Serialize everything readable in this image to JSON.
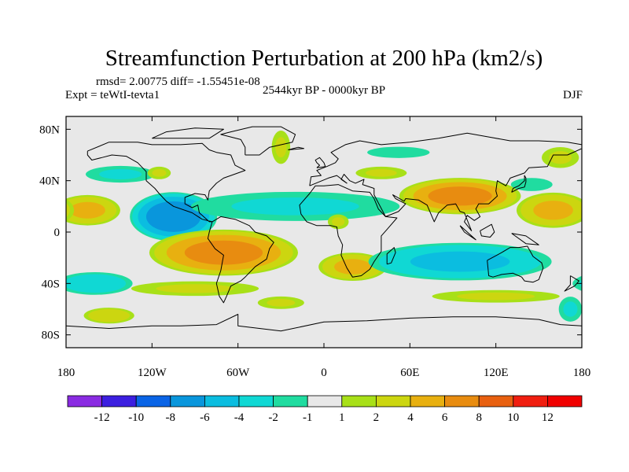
{
  "chart_data": {
    "type": "heatmap",
    "title": "Streamfunction Perturbation at 200 hPa (km2/s)",
    "stats": "rmsd= 2.00775 diff= -1.55451e-08",
    "left_label": "Expt = teWtI-tevta1",
    "center_label": "2544kyr BP - 0000kyr BP",
    "right_label": "DJF",
    "xlabel": "",
    "ylabel": "",
    "xlim": [
      -180,
      180
    ],
    "ylim": [
      -90,
      90
    ],
    "x_ticks": [
      {
        "value": -180,
        "label": "180"
      },
      {
        "value": -120,
        "label": "120W"
      },
      {
        "value": -60,
        "label": "60W"
      },
      {
        "value": 0,
        "label": "0"
      },
      {
        "value": 60,
        "label": "60E"
      },
      {
        "value": 120,
        "label": "120E"
      },
      {
        "value": 180,
        "label": "180"
      }
    ],
    "y_ticks": [
      {
        "value": 80,
        "label": "80N"
      },
      {
        "value": 40,
        "label": "40N"
      },
      {
        "value": 0,
        "label": "0"
      },
      {
        "value": -40,
        "label": "40S"
      },
      {
        "value": -80,
        "label": "80S"
      }
    ],
    "levels": [
      -12,
      -10,
      -8,
      -6,
      -4,
      -2,
      -1,
      1,
      2,
      4,
      6,
      8,
      10,
      12
    ],
    "level_labels": [
      "-12",
      "-10",
      "-8",
      "-6",
      "-4",
      "-2",
      "-1",
      "1",
      "2",
      "4",
      "6",
      "8",
      "10",
      "12"
    ],
    "colors": [
      "#8a2be2",
      "#3c1fe0",
      "#0a64e6",
      "#0996dc",
      "#0bbde0",
      "#10d8d4",
      "#20dca0",
      "#e8e8e8",
      "#a8e018",
      "#ccd610",
      "#e8b010",
      "#e88c10",
      "#e86010",
      "#f01e10",
      "#f00000"
    ],
    "map_fill_color": "#e8e8e8",
    "features": [
      {
        "lon": -105,
        "lat": 12,
        "value": -7,
        "rx": 32,
        "ry": 20,
        "label": "central America low"
      },
      {
        "lon": -165,
        "lat": 17,
        "value": 4,
        "rx": 25,
        "ry": 13,
        "label": "Pacific high north"
      },
      {
        "lon": -70,
        "lat": -16,
        "value": 6,
        "rx": 55,
        "ry": 19,
        "label": "South America high"
      },
      {
        "lon": -160,
        "lat": -40,
        "value": -3,
        "rx": 30,
        "ry": 10,
        "label": "South Pacific low"
      },
      {
        "lon": -90,
        "lat": -44,
        "value": 2,
        "rx": 55,
        "ry": 7,
        "label": "southern band"
      },
      {
        "lon": -142,
        "lat": 45,
        "value": -2,
        "rx": 30,
        "ry": 8,
        "label": "north Pacific low"
      },
      {
        "lon": -30,
        "lat": 66,
        "value": 2,
        "rx": 8,
        "ry": 16,
        "label": "Greenland high"
      },
      {
        "lon": -115,
        "lat": 46,
        "value": 2,
        "rx": 10,
        "ry": 6,
        "label": "western US high"
      },
      {
        "lon": -20,
        "lat": 20,
        "value": -2,
        "rx": 90,
        "ry": 14,
        "label": "Atlantic low band"
      },
      {
        "lon": 10,
        "lat": 8,
        "value": 2,
        "rx": 9,
        "ry": 7,
        "label": "Africa high"
      },
      {
        "lon": 20,
        "lat": -27,
        "value": 4,
        "rx": 26,
        "ry": 12,
        "label": "south Atlantic high"
      },
      {
        "lon": 95,
        "lat": 28,
        "value": 6,
        "rx": 45,
        "ry": 15,
        "label": "Asia high"
      },
      {
        "lon": 160,
        "lat": 17,
        "value": 4,
        "rx": 28,
        "ry": 15,
        "label": "west Pacific high"
      },
      {
        "lon": 95,
        "lat": -23,
        "value": -4,
        "rx": 70,
        "ry": 16,
        "label": "Indian Ocean low"
      },
      {
        "lon": 52,
        "lat": 62,
        "value": -1.5,
        "rx": 30,
        "ry": 6,
        "label": "Siberia low"
      },
      {
        "lon": 165,
        "lat": 58,
        "value": 2,
        "rx": 16,
        "ry": 10,
        "label": "Bering high"
      },
      {
        "lon": 145,
        "lat": 37,
        "value": -1.5,
        "rx": 20,
        "ry": 7,
        "label": "Japan low"
      },
      {
        "lon": 40,
        "lat": 46,
        "value": 2,
        "rx": 22,
        "ry": 6,
        "label": "Europe high"
      },
      {
        "lon": -150,
        "lat": -65,
        "value": 3,
        "rx": 20,
        "ry": 7,
        "label": "Ross Sea high"
      },
      {
        "lon": 172,
        "lat": -60,
        "value": -2,
        "rx": 10,
        "ry": 12,
        "label": "SE Pacific low"
      },
      {
        "lon": -30,
        "lat": -55,
        "value": 2,
        "rx": 20,
        "ry": 6,
        "label": "Weddell high"
      },
      {
        "lon": 120,
        "lat": -50,
        "value": 2,
        "rx": 55,
        "ry": 6,
        "label": "Southern Ocean band"
      }
    ],
    "coastlines": [
      [
        [
          -165,
          63
        ],
        [
          -150,
          70
        ],
        [
          -130,
          70
        ],
        [
          -120,
          68
        ],
        [
          -100,
          68
        ],
        [
          -85,
          69
        ],
        [
          -80,
          64
        ],
        [
          -75,
          62
        ],
        [
          -65,
          60
        ],
        [
          -62,
          52
        ],
        [
          -55,
          48
        ],
        [
          -65,
          44
        ],
        [
          -70,
          42
        ],
        [
          -75,
          38
        ],
        [
          -80,
          32
        ],
        [
          -81,
          25
        ],
        [
          -83,
          29
        ],
        [
          -90,
          30
        ],
        [
          -97,
          27
        ],
        [
          -97,
          22
        ],
        [
          -92,
          19
        ],
        [
          -88,
          21
        ],
        [
          -87,
          15
        ],
        [
          -83,
          11
        ],
        [
          -80,
          8
        ],
        [
          -78,
          8
        ],
        [
          -85,
          10
        ],
        [
          -92,
          15
        ],
        [
          -105,
          20
        ],
        [
          -110,
          24
        ],
        [
          -115,
          30
        ],
        [
          -118,
          34
        ],
        [
          -124,
          40
        ],
        [
          -124,
          47
        ],
        [
          -130,
          54
        ],
        [
          -138,
          59
        ],
        [
          -148,
          60
        ],
        [
          -155,
          58
        ],
        [
          -162,
          56
        ],
        [
          -165,
          60
        ],
        [
          -165,
          63
        ]
      ],
      [
        [
          -78,
          8
        ],
        [
          -72,
          12
        ],
        [
          -62,
          10
        ],
        [
          -52,
          5
        ],
        [
          -48,
          0
        ],
        [
          -40,
          -3
        ],
        [
          -35,
          -8
        ],
        [
          -38,
          -13
        ],
        [
          -40,
          -21
        ],
        [
          -48,
          -27
        ],
        [
          -55,
          -35
        ],
        [
          -58,
          -38
        ],
        [
          -65,
          -42
        ],
        [
          -68,
          -50
        ],
        [
          -70,
          -55
        ],
        [
          -73,
          -50
        ],
        [
          -75,
          -40
        ],
        [
          -72,
          -30
        ],
        [
          -70,
          -18
        ],
        [
          -76,
          -13
        ],
        [
          -81,
          -5
        ],
        [
          -80,
          0
        ],
        [
          -78,
          8
        ]
      ],
      [
        [
          -55,
          60
        ],
        [
          -45,
          60
        ],
        [
          -38,
          66
        ],
        [
          -22,
          70
        ],
        [
          -20,
          76
        ],
        [
          -30,
          82
        ],
        [
          -50,
          82
        ],
        [
          -65,
          78
        ],
        [
          -72,
          76
        ],
        [
          -58,
          72
        ],
        [
          -55,
          66
        ],
        [
          -55,
          60
        ]
      ],
      [
        [
          -6,
          36
        ],
        [
          -10,
          30
        ],
        [
          -17,
          21
        ],
        [
          -16,
          14
        ],
        [
          -12,
          8
        ],
        [
          -5,
          5
        ],
        [
          5,
          5
        ],
        [
          9,
          4
        ],
        [
          10,
          -3
        ],
        [
          13,
          -10
        ],
        [
          12,
          -18
        ],
        [
          16,
          -28
        ],
        [
          20,
          -35
        ],
        [
          26,
          -34
        ],
        [
          32,
          -29
        ],
        [
          35,
          -23
        ],
        [
          40,
          -15
        ],
        [
          40,
          -10
        ],
        [
          40,
          -3
        ],
        [
          44,
          2
        ],
        [
          51,
          11
        ],
        [
          43,
          12
        ],
        [
          38,
          18
        ],
        [
          35,
          26
        ],
        [
          32,
          31
        ],
        [
          20,
          32
        ],
        [
          10,
          37
        ],
        [
          0,
          36
        ],
        [
          -6,
          36
        ]
      ],
      [
        [
          -10,
          36
        ],
        [
          -9,
          43
        ],
        [
          -2,
          44
        ],
        [
          -5,
          48
        ],
        [
          2,
          51
        ],
        [
          8,
          54
        ],
        [
          10,
          57
        ],
        [
          5,
          62
        ],
        [
          15,
          68
        ],
        [
          25,
          71
        ],
        [
          40,
          68
        ],
        [
          60,
          70
        ],
        [
          80,
          73
        ],
        [
          100,
          77
        ],
        [
          115,
          74
        ],
        [
          130,
          71
        ],
        [
          150,
          71
        ],
        [
          170,
          70
        ],
        [
          180,
          68
        ],
        [
          180,
          65
        ],
        [
          170,
          60
        ],
        [
          160,
          60
        ],
        [
          156,
          51
        ],
        [
          143,
          50
        ],
        [
          140,
          46
        ],
        [
          130,
          42
        ],
        [
          127,
          36
        ],
        [
          121,
          40
        ],
        [
          120,
          32
        ],
        [
          121,
          28
        ],
        [
          115,
          22
        ],
        [
          108,
          22
        ],
        [
          106,
          18
        ],
        [
          109,
          12
        ],
        [
          105,
          9
        ],
        [
          100,
          13
        ],
        [
          98,
          8
        ],
        [
          103,
          1
        ],
        [
          98,
          15
        ],
        [
          95,
          16
        ],
        [
          92,
          22
        ],
        [
          86,
          21
        ],
        [
          80,
          15
        ],
        [
          77,
          8
        ],
        [
          72,
          21
        ],
        [
          66,
          25
        ],
        [
          57,
          26
        ],
        [
          56,
          24
        ],
        [
          48,
          29
        ],
        [
          50,
          26
        ],
        [
          57,
          22
        ],
        [
          52,
          16
        ],
        [
          43,
          12
        ],
        [
          35,
          29
        ],
        [
          35,
          34
        ],
        [
          27,
          37
        ],
        [
          28,
          41
        ],
        [
          22,
          38
        ],
        [
          18,
          40
        ],
        [
          14,
          45
        ],
        [
          12,
          41
        ],
        [
          16,
          38
        ],
        [
          9,
          44
        ],
        [
          3,
          42
        ],
        [
          -10,
          36
        ]
      ],
      [
        [
          114,
          -22
        ],
        [
          115,
          -34
        ],
        [
          118,
          -35
        ],
        [
          124,
          -33
        ],
        [
          132,
          -32
        ],
        [
          138,
          -35
        ],
        [
          140,
          -38
        ],
        [
          146,
          -39
        ],
        [
          150,
          -37
        ],
        [
          153,
          -28
        ],
        [
          152,
          -24
        ],
        [
          146,
          -19
        ],
        [
          142,
          -11
        ],
        [
          136,
          -12
        ],
        [
          130,
          -12
        ],
        [
          124,
          -16
        ],
        [
          114,
          -22
        ]
      ],
      [
        [
          -5,
          50
        ],
        [
          1,
          51
        ],
        [
          0,
          54
        ],
        [
          -3,
          58
        ],
        [
          -6,
          56
        ],
        [
          -5,
          54
        ],
        [
          -3,
          52
        ],
        [
          -5,
          50
        ]
      ],
      [
        [
          131,
          31
        ],
        [
          136,
          34
        ],
        [
          140,
          35
        ],
        [
          141,
          39
        ],
        [
          141,
          42
        ],
        [
          140,
          44
        ],
        [
          140,
          40
        ],
        [
          136,
          36
        ],
        [
          132,
          34
        ],
        [
          131,
          31
        ]
      ],
      [
        [
          44,
          -25
        ],
        [
          47,
          -24
        ],
        [
          50,
          -16
        ],
        [
          49,
          -12
        ],
        [
          44,
          -17
        ],
        [
          44,
          -25
        ]
      ],
      [
        [
          95,
          5
        ],
        [
          106,
          -6
        ],
        [
          98,
          0
        ],
        [
          95,
          5
        ]
      ],
      [
        [
          109,
          1
        ],
        [
          117,
          6
        ],
        [
          119,
          0
        ],
        [
          116,
          -4
        ],
        [
          110,
          -3
        ],
        [
          109,
          1
        ]
      ],
      [
        [
          131,
          -1
        ],
        [
          141,
          -3
        ],
        [
          150,
          -10
        ],
        [
          141,
          -9
        ],
        [
          131,
          -1
        ]
      ],
      [
        [
          -180,
          -73
        ],
        [
          -150,
          -75
        ],
        [
          -120,
          -73
        ],
        [
          -100,
          -73
        ],
        [
          -75,
          -72
        ],
        [
          -60,
          -64
        ],
        [
          -60,
          -73
        ],
        [
          -30,
          -77
        ],
        [
          0,
          -70
        ],
        [
          30,
          -69
        ],
        [
          60,
          -67
        ],
        [
          90,
          -66
        ],
        [
          120,
          -66
        ],
        [
          150,
          -68
        ],
        [
          165,
          -72
        ],
        [
          180,
          -73
        ]
      ],
      [
        [
          -120,
          73
        ],
        [
          -95,
          73
        ],
        [
          -80,
          73
        ],
        [
          -70,
          80
        ],
        [
          -90,
          81
        ],
        [
          -110,
          78
        ],
        [
          -120,
          73
        ]
      ],
      [
        [
          172,
          -34
        ],
        [
          178,
          -38
        ],
        [
          175,
          -42
        ],
        [
          168,
          -46
        ],
        [
          172,
          -41
        ],
        [
          172,
          -34
        ]
      ],
      [
        [
          -25,
          64
        ],
        [
          -14,
          65
        ],
        [
          -18,
          66
        ],
        [
          -25,
          64
        ]
      ]
    ]
  }
}
